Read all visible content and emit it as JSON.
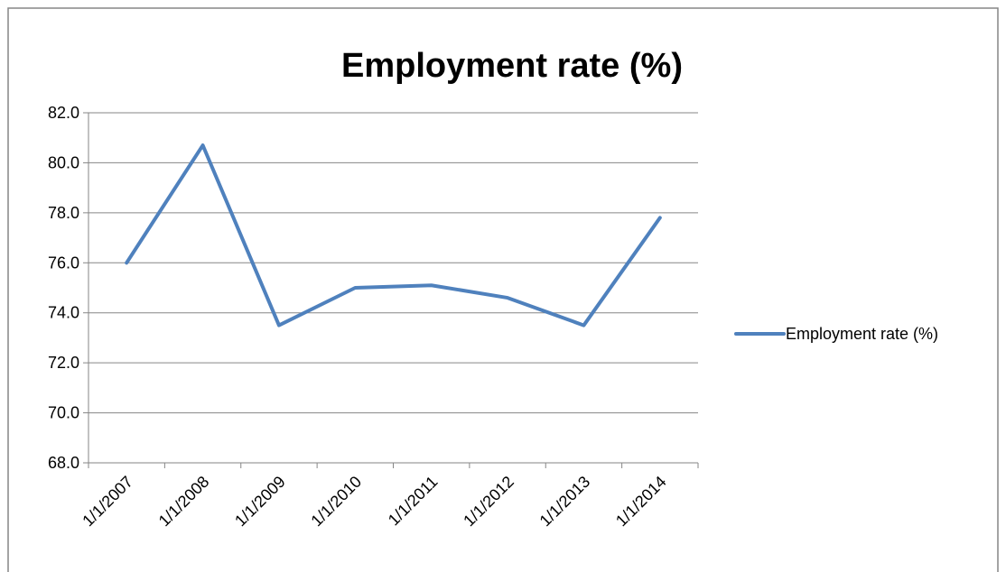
{
  "chart_data": {
    "type": "line",
    "title": "Employment rate (%)",
    "xlabel": "",
    "ylabel": "",
    "categories": [
      "1/1/2007",
      "1/1/2008",
      "1/1/2009",
      "1/1/2010",
      "1/1/2011",
      "1/1/2012",
      "1/1/2013",
      "1/1/2014"
    ],
    "series": [
      {
        "name": "Employment rate (%)",
        "values": [
          76.0,
          80.7,
          73.5,
          75.0,
          75.1,
          74.6,
          73.5,
          77.8
        ],
        "color": "#4F81BD"
      }
    ],
    "ylim": [
      68,
      82
    ],
    "yticks": [
      "68.0",
      "70.0",
      "72.0",
      "74.0",
      "76.0",
      "78.0",
      "80.0",
      "82.0"
    ],
    "grid": true,
    "legend_position": "right",
    "gridline_color": "#868686",
    "frame_color": "#868686"
  }
}
